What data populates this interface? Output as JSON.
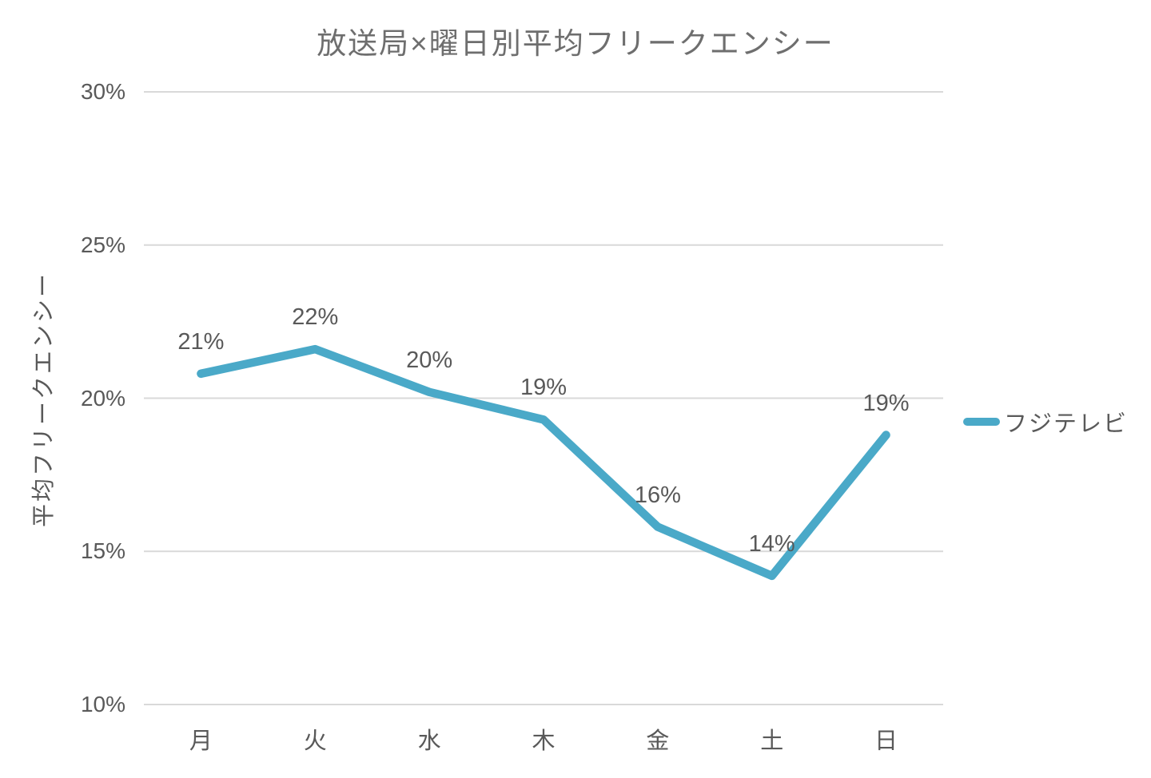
{
  "chart_data": {
    "type": "line",
    "title": "放送局×曜日別平均フリークエンシー",
    "ylabel": "平均フリークエンシー",
    "xlabel": "",
    "categories": [
      "月",
      "火",
      "水",
      "木",
      "金",
      "土",
      "日"
    ],
    "series": [
      {
        "name": "フジテレビ",
        "values": [
          20.8,
          21.6,
          20.2,
          19.3,
          15.8,
          14.2,
          18.8
        ],
        "data_labels": [
          "21%",
          "22%",
          "20%",
          "19%",
          "16%",
          "14%",
          "19%"
        ],
        "color": "#4aa9c8"
      }
    ],
    "y_ticks": [
      {
        "value": 30,
        "label": "30%"
      },
      {
        "value": 25,
        "label": "25%"
      },
      {
        "value": 20,
        "label": "20%"
      },
      {
        "value": 15,
        "label": "15%"
      },
      {
        "value": 10,
        "label": "10%"
      }
    ],
    "ylim": [
      10,
      30
    ],
    "grid": "horizontal",
    "legend_position": "right",
    "legend": {
      "items": [
        {
          "label": "フジテレビ",
          "color": "#4aa9c8"
        }
      ]
    },
    "colors": {
      "gridline": "#d9d9d9",
      "axis_text": "#595959",
      "title_text": "#6e6e6e",
      "background": "#ffffff"
    }
  }
}
